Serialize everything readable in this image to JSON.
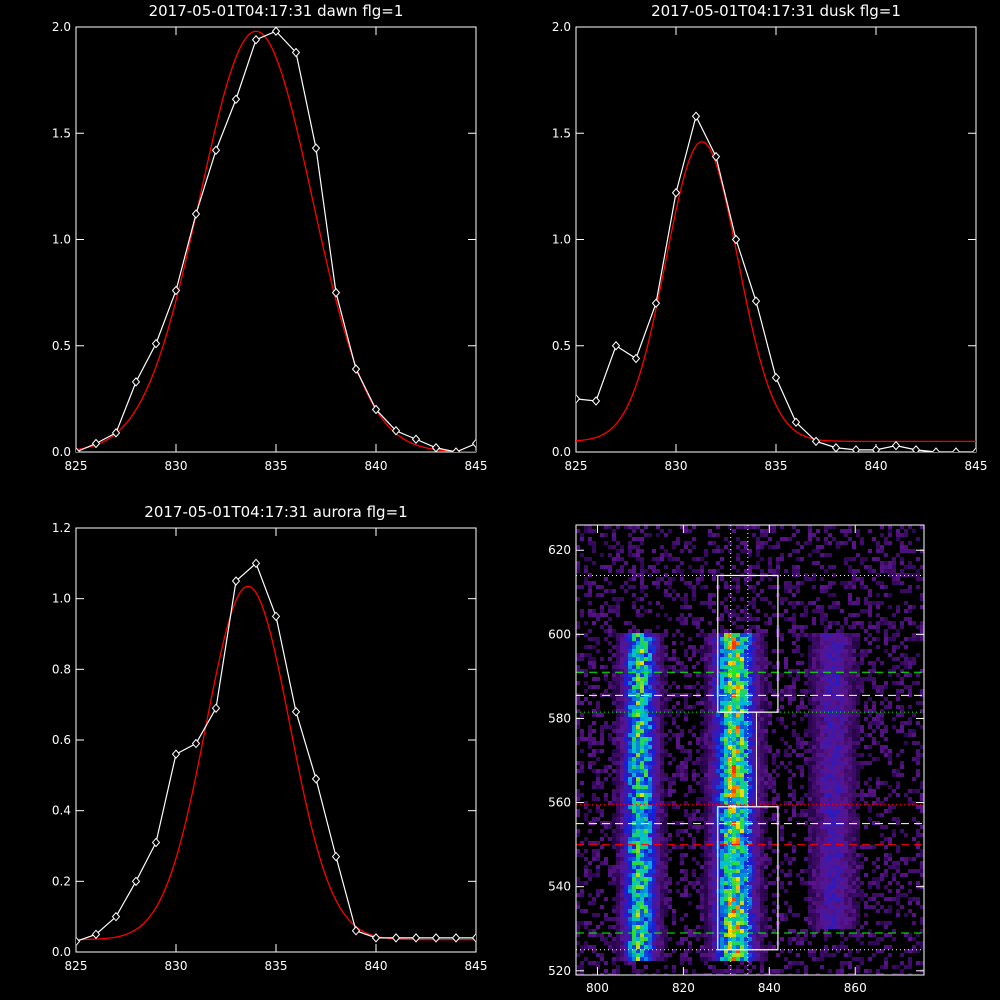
{
  "chart_data": [
    {
      "type": "line",
      "title": "2017-05-01T04:17:31 dawn flg=1",
      "xlim": [
        825,
        845
      ],
      "ylim": [
        0,
        2.0
      ],
      "xticks": [
        "825",
        "830",
        "835",
        "840",
        "845"
      ],
      "yticks": [
        "0.0",
        "0.5",
        "1.0",
        "1.5",
        "2.0"
      ],
      "series": [
        {
          "x": [
            825,
            826,
            827,
            828,
            829,
            830,
            831,
            832,
            833,
            834,
            835,
            836,
            837,
            838,
            839,
            840,
            841,
            842,
            843,
            844,
            845
          ],
          "values": [
            0.0,
            0.04,
            0.09,
            0.33,
            0.51,
            0.76,
            1.12,
            1.42,
            1.66,
            1.94,
            1.98,
            1.88,
            1.43,
            0.75,
            0.39,
            0.2,
            0.1,
            0.06,
            0.02,
            0.0,
            0.04
          ],
          "color": "#ffffff",
          "marker": "diamond"
        },
        {
          "fit": "gaussian",
          "amplitude": 1.98,
          "center": 834.0,
          "sigma": 2.8,
          "offset": 0.0,
          "color": "#ff0000"
        }
      ]
    },
    {
      "type": "line",
      "title": "2017-05-01T04:17:31 dusk flg=1",
      "xlim": [
        825,
        845
      ],
      "ylim": [
        0,
        2.0
      ],
      "xticks": [
        "825",
        "830",
        "835",
        "840",
        "845"
      ],
      "yticks": [
        "0.0",
        "0.5",
        "1.0",
        "1.5",
        "2.0"
      ],
      "series": [
        {
          "x": [
            825,
            826,
            827,
            828,
            829,
            830,
            831,
            832,
            833,
            834,
            835,
            836,
            837,
            838,
            839,
            840,
            841,
            842,
            843,
            844,
            845
          ],
          "values": [
            0.25,
            0.24,
            0.5,
            0.44,
            0.7,
            1.22,
            1.58,
            1.39,
            1.0,
            0.71,
            0.35,
            0.14,
            0.05,
            0.02,
            0.01,
            0.01,
            0.03,
            0.01,
            0.0,
            0.0,
            0.0
          ],
          "color": "#ffffff",
          "marker": "diamond"
        },
        {
          "fit": "gaussian",
          "amplitude": 1.41,
          "center": 831.3,
          "sigma": 1.8,
          "offset": 0.05,
          "color": "#ff0000"
        }
      ]
    },
    {
      "type": "line",
      "title": "2017-05-01T04:17:31 aurora flg=1",
      "xlim": [
        825,
        845
      ],
      "ylim": [
        0,
        1.2
      ],
      "xticks": [
        "825",
        "830",
        "835",
        "840",
        "845"
      ],
      "yticks": [
        "0.0",
        "0.2",
        "0.4",
        "0.6",
        "0.8",
        "1.0",
        "1.2"
      ],
      "series": [
        {
          "x": [
            825,
            826,
            827,
            828,
            829,
            830,
            831,
            832,
            833,
            834,
            835,
            836,
            837,
            838,
            839,
            840,
            841,
            842,
            843,
            844,
            845
          ],
          "values": [
            0.03,
            0.05,
            0.1,
            0.2,
            0.31,
            0.56,
            0.59,
            0.69,
            1.05,
            1.1,
            0.95,
            0.68,
            0.49,
            0.27,
            0.06,
            0.04,
            0.04,
            0.04,
            0.04,
            0.04,
            0.04
          ],
          "color": "#ffffff",
          "marker": "diamond"
        },
        {
          "fit": "gaussian",
          "amplitude": 1.0,
          "center": 833.6,
          "sigma": 2.1,
          "offset": 0.035,
          "color": "#ff0000"
        }
      ]
    },
    {
      "type": "heatmap",
      "title": "",
      "xlim": [
        795,
        876
      ],
      "ylim": [
        519,
        626
      ],
      "xticks": [
        "800",
        "820",
        "840",
        "860"
      ],
      "yticks": [
        "520",
        "540",
        "560",
        "580",
        "600",
        "620"
      ],
      "colormap": "rainbow",
      "intensity_bands": [
        {
          "x_center": 810,
          "width": 5,
          "y_from": 522,
          "y_to": 600,
          "peak": 0.85
        },
        {
          "x_center": 832,
          "width": 6,
          "y_from": 522,
          "y_to": 600,
          "peak": 1.0
        },
        {
          "x_center": 855,
          "width": 6,
          "y_from": 530,
          "y_to": 600,
          "peak": 0.3
        }
      ],
      "boxes": [
        {
          "x": [
            828,
            842
          ],
          "y": [
            581.5,
            614
          ]
        },
        {
          "x": [
            828,
            842
          ],
          "y": [
            525,
            559
          ]
        }
      ],
      "vlines": [
        {
          "x": 831,
          "style": "dotted",
          "color": "#ffffff"
        },
        {
          "x": 835,
          "style": "dotted",
          "color": "#ffffff"
        },
        {
          "x": 837,
          "style": "solid",
          "color": "#ffffff",
          "y": [
            559,
            581.5
          ]
        }
      ],
      "hlines": [
        {
          "y": 614,
          "style": "dotted",
          "color": "#ffffff"
        },
        {
          "y": 591,
          "style": "dashed",
          "color": "#00ff00"
        },
        {
          "y": 585.5,
          "style": "dashed",
          "color": "#ffffff"
        },
        {
          "y": 581.5,
          "style": "dotted",
          "color": "#00ff00"
        },
        {
          "y": 559.5,
          "style": "dotted",
          "color": "#ff0000"
        },
        {
          "y": 555,
          "style": "dashed",
          "color": "#ffffff"
        },
        {
          "y": 550,
          "style": "dashed",
          "color": "#ff0000"
        },
        {
          "y": 529,
          "style": "dashed",
          "color": "#00ff00"
        },
        {
          "y": 525,
          "style": "dotted",
          "color": "#ffffff"
        }
      ]
    }
  ]
}
